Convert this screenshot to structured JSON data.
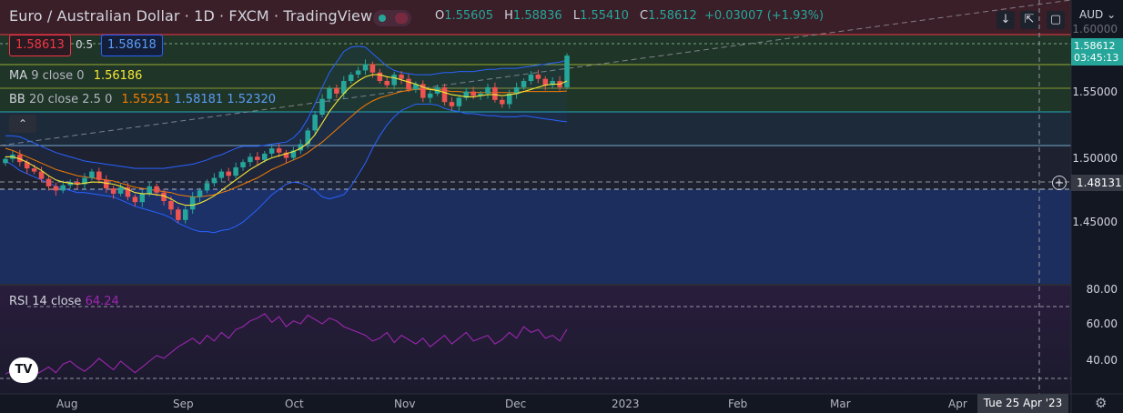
{
  "header": {
    "title": "Euro / Australian Dollar · 1D · FXCM · TradingView",
    "ohlc": {
      "o_label": "O",
      "o": "1.55605",
      "h_label": "H",
      "h": "1.58836",
      "l_label": "L",
      "l": "1.55410",
      "c_label": "C",
      "c": "1.58612",
      "change": "+0.03007 (+1.93%)"
    }
  },
  "trade": {
    "sell_price": "1.58613",
    "spread": "0.5",
    "buy_price": "1.58618"
  },
  "indicators": {
    "ma": {
      "name": "MA",
      "params": "9 close 0",
      "value": "1.56186"
    },
    "bb": {
      "name": "BB",
      "params": "20 close 2.5 0",
      "basis": "1.55251",
      "upper": "1.58181",
      "lower": "1.52320"
    },
    "rsi": {
      "name": "RSI",
      "params": "14 close",
      "value": "64.24"
    }
  },
  "price_axis": {
    "currency": "AUD",
    "labels": [
      "1.60000",
      "1.55000",
      "1.50000",
      "1.45000"
    ],
    "current_price": "1.58612",
    "countdown": "03:45:13",
    "crosshair_price": "1.48131"
  },
  "rsi_axis": {
    "labels": [
      "80.00",
      "60.00",
      "40.00"
    ]
  },
  "time_axis": {
    "labels": [
      "Aug",
      "Sep",
      "Oct",
      "Nov",
      "Dec",
      "2023",
      "Feb",
      "Mar",
      "Apr"
    ],
    "crosshair_date": "Tue 25 Apr '23"
  },
  "colors": {
    "bull": "#26a69a",
    "bear": "#ef5350",
    "ma": "#f7e733",
    "bb_basis": "#f57c00",
    "bb_band": "#2962ff",
    "rsi": "#9c27b0"
  },
  "chart_data": {
    "type": "candlestick",
    "symbol": "EURAUD",
    "timeframe": "1D",
    "ylim": [
      1.41,
      1.6
    ],
    "ohlc_last": {
      "open": 1.55605,
      "high": 1.58836,
      "low": 1.5541,
      "close": 1.58612
    },
    "series": [
      {
        "name": "Close",
        "values": [
          1.488,
          1.492,
          1.485,
          1.479,
          1.476,
          1.469,
          1.462,
          1.458,
          1.463,
          1.466,
          1.464,
          1.47,
          1.476,
          1.468,
          1.46,
          1.455,
          1.461,
          1.452,
          1.447,
          1.455,
          1.462,
          1.456,
          1.448,
          1.44,
          1.43,
          1.44,
          1.452,
          1.458,
          1.465,
          1.47,
          1.476,
          1.472,
          1.48,
          1.485,
          1.49,
          1.487,
          1.493,
          1.498,
          1.494,
          1.489,
          1.496,
          1.502,
          1.515,
          1.53,
          1.545,
          1.555,
          1.55,
          1.562,
          1.568,
          1.572,
          1.578,
          1.57,
          1.562,
          1.558,
          1.568,
          1.564,
          1.554,
          1.559,
          1.546,
          1.55,
          1.556,
          1.542,
          1.538,
          1.546,
          1.552,
          1.548,
          1.55,
          1.556,
          1.544,
          1.54,
          1.55,
          1.556,
          1.562,
          1.568,
          1.564,
          1.558,
          1.562,
          1.556,
          1.5861
        ]
      },
      {
        "name": "MA 9",
        "values": [
          1.49,
          1.49,
          1.488,
          1.485,
          1.481,
          1.477,
          1.472,
          1.468,
          1.466,
          1.465,
          1.464,
          1.465,
          1.466,
          1.466,
          1.465,
          1.464,
          1.462,
          1.459,
          1.456,
          1.455,
          1.455,
          1.454,
          1.453,
          1.45,
          1.446,
          1.444,
          1.444,
          1.446,
          1.449,
          1.453,
          1.458,
          1.463,
          1.468,
          1.473,
          1.478,
          1.482,
          1.486,
          1.489,
          1.491,
          1.493,
          1.495,
          1.498,
          1.503,
          1.511,
          1.522,
          1.533,
          1.542,
          1.55,
          1.557,
          1.562,
          1.566,
          1.568,
          1.568,
          1.566,
          1.565,
          1.563,
          1.561,
          1.559,
          1.556,
          1.554,
          1.553,
          1.551,
          1.549,
          1.548,
          1.547,
          1.547,
          1.548,
          1.549,
          1.549,
          1.548,
          1.549,
          1.55,
          1.552,
          1.554,
          1.556,
          1.558,
          1.559,
          1.559,
          1.5619
        ]
      },
      {
        "name": "BB basis",
        "values": [
          1.498,
          1.496,
          1.493,
          1.49,
          1.487,
          1.484,
          1.481,
          1.478,
          1.476,
          1.474,
          1.472,
          1.471,
          1.47,
          1.469,
          1.468,
          1.467,
          1.465,
          1.463,
          1.461,
          1.46,
          1.459,
          1.458,
          1.457,
          1.456,
          1.454,
          1.453,
          1.452,
          1.452,
          1.453,
          1.454,
          1.456,
          1.458,
          1.461,
          1.464,
          1.467,
          1.47,
          1.474,
          1.478,
          1.481,
          1.484,
          1.487,
          1.49,
          1.494,
          1.499,
          1.504,
          1.51,
          1.516,
          1.522,
          1.528,
          1.534,
          1.539,
          1.543,
          1.546,
          1.548,
          1.55,
          1.552,
          1.553,
          1.554,
          1.554,
          1.554,
          1.554,
          1.553,
          1.552,
          1.552,
          1.551,
          1.551,
          1.551,
          1.551,
          1.551,
          1.551,
          1.551,
          1.551,
          1.552,
          1.552,
          1.552,
          1.552,
          1.552,
          1.552,
          1.5525
        ]
      },
      {
        "name": "BB upper",
        "values": [
          1.51,
          1.51,
          1.509,
          1.506,
          1.503,
          1.5,
          1.497,
          1.494,
          1.492,
          1.49,
          1.488,
          1.486,
          1.485,
          1.484,
          1.483,
          1.482,
          1.481,
          1.48,
          1.479,
          1.479,
          1.479,
          1.479,
          1.479,
          1.48,
          1.481,
          1.482,
          1.483,
          1.485,
          1.487,
          1.49,
          1.492,
          1.495,
          1.498,
          1.5,
          1.5,
          1.5,
          1.501,
          1.502,
          1.503,
          1.504,
          1.508,
          1.515,
          1.526,
          1.54,
          1.556,
          1.57,
          1.58,
          1.59,
          1.594,
          1.595,
          1.594,
          1.588,
          1.582,
          1.576,
          1.572,
          1.57,
          1.569,
          1.568,
          1.568,
          1.568,
          1.569,
          1.57,
          1.57,
          1.571,
          1.571,
          1.571,
          1.572,
          1.573,
          1.573,
          1.574,
          1.574,
          1.574,
          1.575,
          1.576,
          1.577,
          1.578,
          1.579,
          1.58,
          1.5818
        ]
      },
      {
        "name": "BB lower",
        "values": [
          1.486,
          1.482,
          1.477,
          1.474,
          1.471,
          1.468,
          1.465,
          1.462,
          1.46,
          1.458,
          1.456,
          1.456,
          1.455,
          1.454,
          1.453,
          1.452,
          1.449,
          1.446,
          1.443,
          1.441,
          1.439,
          1.437,
          1.435,
          1.432,
          1.427,
          1.424,
          1.421,
          1.419,
          1.419,
          1.418,
          1.42,
          1.421,
          1.424,
          1.428,
          1.434,
          1.44,
          1.447,
          1.454,
          1.459,
          1.464,
          1.466,
          1.465,
          1.462,
          1.458,
          1.452,
          1.45,
          1.452,
          1.454,
          1.462,
          1.473,
          1.484,
          1.498,
          1.51,
          1.52,
          1.528,
          1.534,
          1.537,
          1.54,
          1.54,
          1.54,
          1.539,
          1.536,
          1.534,
          1.533,
          1.531,
          1.531,
          1.53,
          1.529,
          1.529,
          1.528,
          1.528,
          1.528,
          1.529,
          1.528,
          1.527,
          1.526,
          1.525,
          1.524,
          1.5232
        ]
      },
      {
        "name": "RSI",
        "values": [
          33,
          36,
          30,
          28,
          32,
          35,
          38,
          34,
          40,
          42,
          38,
          35,
          39,
          44,
          40,
          36,
          42,
          38,
          34,
          38,
          42,
          46,
          44,
          48,
          52,
          55,
          58,
          54,
          60,
          56,
          62,
          58,
          64,
          66,
          70,
          72,
          75,
          69,
          73,
          66,
          70,
          68,
          74,
          71,
          68,
          72,
          70,
          66,
          64,
          62,
          60,
          56,
          58,
          62,
          55,
          60,
          57,
          54,
          58,
          52,
          56,
          60,
          54,
          58,
          62,
          56,
          58,
          60,
          54,
          57,
          62,
          58,
          66,
          62,
          64,
          58,
          60,
          56,
          64.24
        ]
      }
    ]
  }
}
